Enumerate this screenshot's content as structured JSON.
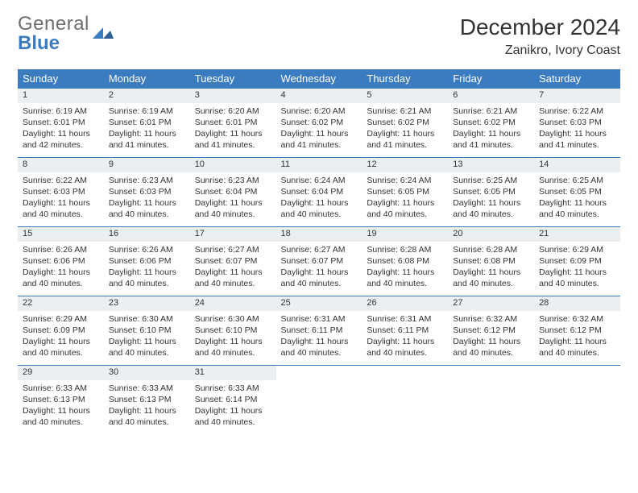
{
  "logo": {
    "word1": "General",
    "word2": "Blue"
  },
  "title": "December 2024",
  "location": "Zanikro, Ivory Coast",
  "colors": {
    "header_bg": "#3b7bbf",
    "header_text": "#ffffff",
    "daynum_bg": "#eceff1",
    "border": "#3b7bbf",
    "text": "#333333",
    "logo_gray": "#6e6e6e",
    "logo_blue": "#3b7bbf"
  },
  "weekdays": [
    "Sunday",
    "Monday",
    "Tuesday",
    "Wednesday",
    "Thursday",
    "Friday",
    "Saturday"
  ],
  "weeks": [
    [
      {
        "n": "1",
        "sunrise": "6:19 AM",
        "sunset": "6:01 PM",
        "daylight": "11 hours and 42 minutes."
      },
      {
        "n": "2",
        "sunrise": "6:19 AM",
        "sunset": "6:01 PM",
        "daylight": "11 hours and 41 minutes."
      },
      {
        "n": "3",
        "sunrise": "6:20 AM",
        "sunset": "6:01 PM",
        "daylight": "11 hours and 41 minutes."
      },
      {
        "n": "4",
        "sunrise": "6:20 AM",
        "sunset": "6:02 PM",
        "daylight": "11 hours and 41 minutes."
      },
      {
        "n": "5",
        "sunrise": "6:21 AM",
        "sunset": "6:02 PM",
        "daylight": "11 hours and 41 minutes."
      },
      {
        "n": "6",
        "sunrise": "6:21 AM",
        "sunset": "6:02 PM",
        "daylight": "11 hours and 41 minutes."
      },
      {
        "n": "7",
        "sunrise": "6:22 AM",
        "sunset": "6:03 PM",
        "daylight": "11 hours and 41 minutes."
      }
    ],
    [
      {
        "n": "8",
        "sunrise": "6:22 AM",
        "sunset": "6:03 PM",
        "daylight": "11 hours and 40 minutes."
      },
      {
        "n": "9",
        "sunrise": "6:23 AM",
        "sunset": "6:03 PM",
        "daylight": "11 hours and 40 minutes."
      },
      {
        "n": "10",
        "sunrise": "6:23 AM",
        "sunset": "6:04 PM",
        "daylight": "11 hours and 40 minutes."
      },
      {
        "n": "11",
        "sunrise": "6:24 AM",
        "sunset": "6:04 PM",
        "daylight": "11 hours and 40 minutes."
      },
      {
        "n": "12",
        "sunrise": "6:24 AM",
        "sunset": "6:05 PM",
        "daylight": "11 hours and 40 minutes."
      },
      {
        "n": "13",
        "sunrise": "6:25 AM",
        "sunset": "6:05 PM",
        "daylight": "11 hours and 40 minutes."
      },
      {
        "n": "14",
        "sunrise": "6:25 AM",
        "sunset": "6:05 PM",
        "daylight": "11 hours and 40 minutes."
      }
    ],
    [
      {
        "n": "15",
        "sunrise": "6:26 AM",
        "sunset": "6:06 PM",
        "daylight": "11 hours and 40 minutes."
      },
      {
        "n": "16",
        "sunrise": "6:26 AM",
        "sunset": "6:06 PM",
        "daylight": "11 hours and 40 minutes."
      },
      {
        "n": "17",
        "sunrise": "6:27 AM",
        "sunset": "6:07 PM",
        "daylight": "11 hours and 40 minutes."
      },
      {
        "n": "18",
        "sunrise": "6:27 AM",
        "sunset": "6:07 PM",
        "daylight": "11 hours and 40 minutes."
      },
      {
        "n": "19",
        "sunrise": "6:28 AM",
        "sunset": "6:08 PM",
        "daylight": "11 hours and 40 minutes."
      },
      {
        "n": "20",
        "sunrise": "6:28 AM",
        "sunset": "6:08 PM",
        "daylight": "11 hours and 40 minutes."
      },
      {
        "n": "21",
        "sunrise": "6:29 AM",
        "sunset": "6:09 PM",
        "daylight": "11 hours and 40 minutes."
      }
    ],
    [
      {
        "n": "22",
        "sunrise": "6:29 AM",
        "sunset": "6:09 PM",
        "daylight": "11 hours and 40 minutes."
      },
      {
        "n": "23",
        "sunrise": "6:30 AM",
        "sunset": "6:10 PM",
        "daylight": "11 hours and 40 minutes."
      },
      {
        "n": "24",
        "sunrise": "6:30 AM",
        "sunset": "6:10 PM",
        "daylight": "11 hours and 40 minutes."
      },
      {
        "n": "25",
        "sunrise": "6:31 AM",
        "sunset": "6:11 PM",
        "daylight": "11 hours and 40 minutes."
      },
      {
        "n": "26",
        "sunrise": "6:31 AM",
        "sunset": "6:11 PM",
        "daylight": "11 hours and 40 minutes."
      },
      {
        "n": "27",
        "sunrise": "6:32 AM",
        "sunset": "6:12 PM",
        "daylight": "11 hours and 40 minutes."
      },
      {
        "n": "28",
        "sunrise": "6:32 AM",
        "sunset": "6:12 PM",
        "daylight": "11 hours and 40 minutes."
      }
    ],
    [
      {
        "n": "29",
        "sunrise": "6:33 AM",
        "sunset": "6:13 PM",
        "daylight": "11 hours and 40 minutes."
      },
      {
        "n": "30",
        "sunrise": "6:33 AM",
        "sunset": "6:13 PM",
        "daylight": "11 hours and 40 minutes."
      },
      {
        "n": "31",
        "sunrise": "6:33 AM",
        "sunset": "6:14 PM",
        "daylight": "11 hours and 40 minutes."
      },
      null,
      null,
      null,
      null
    ]
  ],
  "labels": {
    "sunrise": "Sunrise: ",
    "sunset": "Sunset: ",
    "daylight": "Daylight: "
  }
}
